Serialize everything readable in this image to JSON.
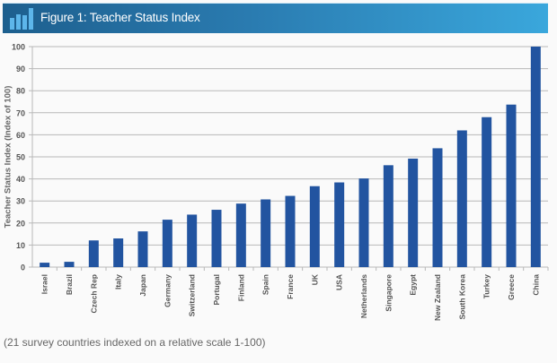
{
  "header": {
    "title": "Figure 1: Teacher Status Index",
    "icon": "bar-chart-icon"
  },
  "footnote": "(21 survey countries indexed on a relative scale 1-100)",
  "colors": {
    "bar": "#2254a0",
    "grid": "#b8b8b8",
    "header_start": "#1d5f8e",
    "header_end": "#3aa7dc",
    "tick_text": "#555555"
  },
  "chart_data": {
    "type": "bar",
    "title": "Figure 1: Teacher Status Index",
    "xlabel": "",
    "ylabel": "Teacher Status Index (Index of 100)",
    "ylim": [
      0,
      100
    ],
    "yticks": [
      0,
      10,
      20,
      30,
      40,
      50,
      60,
      70,
      80,
      90,
      100
    ],
    "grid": true,
    "categories": [
      "Israel",
      "Brazil",
      "Czech Rep",
      "Italy",
      "Japan",
      "Germany",
      "Switzerland",
      "Portugal",
      "Finland",
      "Spain",
      "France",
      "UK",
      "USA",
      "Netherlands",
      "Singapore",
      "Egypt",
      "New Zealand",
      "South Korea",
      "Turkey",
      "Greece",
      "China"
    ],
    "values": [
      2,
      2.4,
      12.1,
      13,
      16.2,
      21.5,
      23.8,
      26,
      28.8,
      30.7,
      32.3,
      36.7,
      38.4,
      40.2,
      46.2,
      49.2,
      53.9,
      62,
      68,
      73.7,
      100
    ]
  }
}
